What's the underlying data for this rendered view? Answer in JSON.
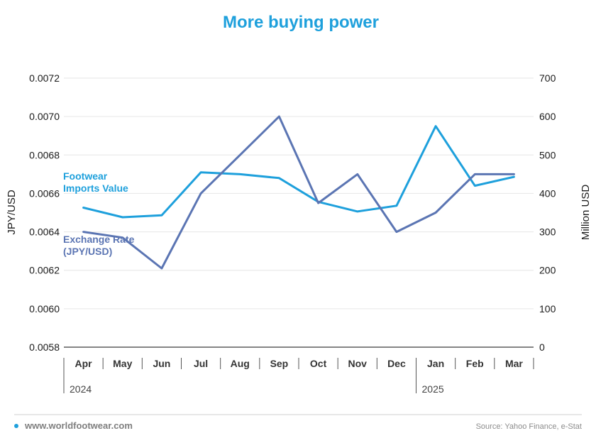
{
  "chart_data": {
    "type": "line",
    "title": "More buying power",
    "categories": [
      "Apr",
      "May",
      "Jun",
      "Jul",
      "Aug",
      "Sep",
      "Oct",
      "Nov",
      "Dec",
      "Jan",
      "Feb",
      "Mar"
    ],
    "year_groups": [
      {
        "label": "2024",
        "start": 0,
        "end": 8
      },
      {
        "label": "2025",
        "start": 9,
        "end": 11
      }
    ],
    "left_axis": {
      "label": "JPY/USD",
      "ylim": [
        0.0058,
        0.0072
      ],
      "ticks": [
        "0.0058",
        "0.0060",
        "0.0062",
        "0.0064",
        "0.0066",
        "0.0068",
        "0.0070",
        "0.0072"
      ]
    },
    "right_axis": {
      "label": "Million USD",
      "ylim": [
        0,
        700
      ],
      "ticks": [
        "0",
        "100",
        "200",
        "300",
        "400",
        "500",
        "600",
        "700"
      ]
    },
    "series": [
      {
        "name": "Footwear Imports Value",
        "label_lines": [
          "Footwear",
          "Imports Value"
        ],
        "axis": "right",
        "color": "#1ea0dc",
        "values": [
          363,
          338,
          343,
          455,
          450,
          440,
          378,
          353,
          368,
          575,
          420,
          443
        ]
      },
      {
        "name": "Exchange Rate (JPY/USD)",
        "label_lines": [
          "Exchange Rate",
          "(JPY/USD)"
        ],
        "axis": "left",
        "color": "#5b75b3",
        "values": [
          0.0064,
          0.00637,
          0.00621,
          0.0066,
          0.0068,
          0.007,
          0.00655,
          0.0067,
          0.0064,
          0.0065,
          0.0067,
          0.0067
        ]
      }
    ],
    "grid": true,
    "title_color": "#1ea0dc"
  },
  "footer": {
    "site": "www.worldfootwear.com",
    "source": "Source: Yahoo Finance, e-Stat",
    "dot_color": "#1ea0dc"
  }
}
